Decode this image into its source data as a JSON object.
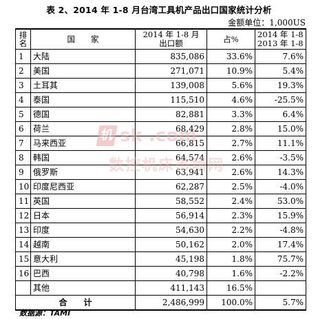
{
  "title": "表 2、2014 年 1-8 月台湾工具机产品出口国家统计分析",
  "unit": "金额单位：1,000US",
  "headers": {
    "rank": "排名",
    "country": "国　　家",
    "export_line1": "2014 年 1-8 月",
    "export_line2": "出口额",
    "share": "占%",
    "growth_line1": "2014 年 1-8 月/",
    "growth_line2": "2013 年 1-8 月"
  },
  "rows": [
    {
      "rank": "1",
      "country": "大陆",
      "export": "835,086",
      "share": "33.6%",
      "growth": "7.6%"
    },
    {
      "rank": "2",
      "country": "美国",
      "export": "271,071",
      "share": "10.9%",
      "growth": "5.4%"
    },
    {
      "rank": "3",
      "country": "土耳其",
      "export": "139,008",
      "share": "5.6%",
      "growth": "19.3%"
    },
    {
      "rank": "4",
      "country": "泰国",
      "export": "115,510",
      "share": "4.6%",
      "growth": "-25.5%"
    },
    {
      "rank": "5",
      "country": "德国",
      "export": "82,881",
      "share": "3.3%",
      "growth": "6.4%"
    },
    {
      "rank": "6",
      "country": "荷兰",
      "export": "68,429",
      "share": "2.8%",
      "growth": "15.0%"
    },
    {
      "rank": "7",
      "country": "马来西亚",
      "export": "66,815",
      "share": "2.7%",
      "growth": "11.1%"
    },
    {
      "rank": "8",
      "country": "韩国",
      "export": "64,574",
      "share": "2.6%",
      "growth": "-3.5%"
    },
    {
      "rank": "9",
      "country": "俄罗斯",
      "export": "63,941",
      "share": "2.6%",
      "growth": "14.3%"
    },
    {
      "rank": "10",
      "country": "印度尼西亚",
      "export": "62,287",
      "share": "2.5%",
      "growth": "-4.0%"
    },
    {
      "rank": "11",
      "country": "英国",
      "export": "58,552",
      "share": "2.4%",
      "growth": "53.0%"
    },
    {
      "rank": "12",
      "country": "日本",
      "export": "56,914",
      "share": "2.3%",
      "growth": "15.9%"
    },
    {
      "rank": "13",
      "country": "印度",
      "export": "54,630",
      "share": "2.2%",
      "growth": "-4.8%"
    },
    {
      "rank": "14",
      "country": "越南",
      "export": "50,162",
      "share": "2.0%",
      "growth": "17.4%"
    },
    {
      "rank": "15",
      "country": "意大利",
      "export": "45,198",
      "share": "1.8%",
      "growth": "75.7%"
    },
    {
      "rank": "16",
      "country": "巴西",
      "export": "40,798",
      "share": "1.6%",
      "growth": "-2.2%"
    },
    {
      "rank": "",
      "country": "其他",
      "export": "411,143",
      "share": "16.5%",
      "growth": ""
    }
  ],
  "total": {
    "label": "合　　计",
    "export": "2,486,999",
    "share": "100.0%",
    "growth": "5.7%"
  },
  "source": "数据源：TAMI",
  "watermark": {
    "logo": "机",
    "text": "sk .com",
    "cn": "数控机床市场网",
    "color": "#e8a6a6"
  }
}
